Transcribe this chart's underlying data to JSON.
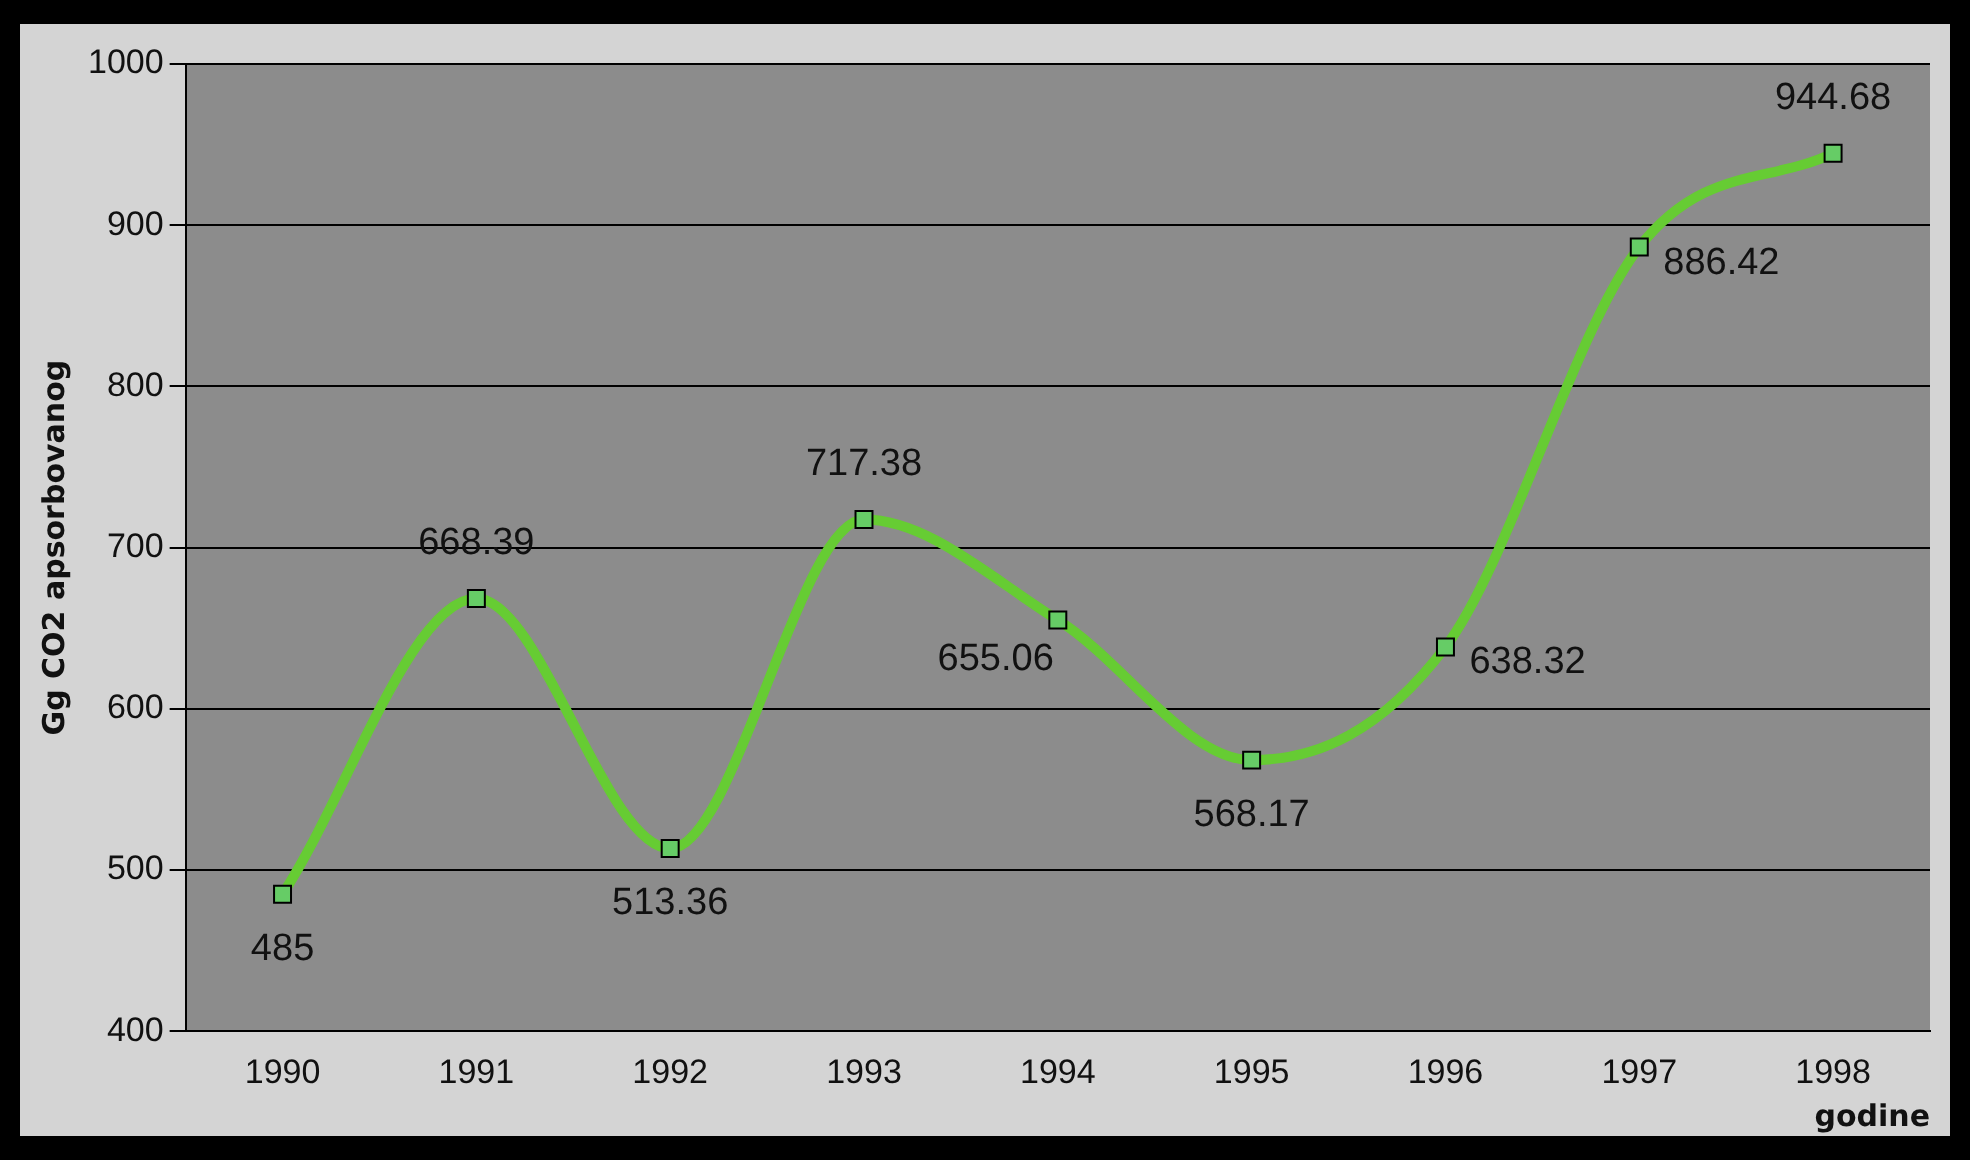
{
  "chart_data": {
    "type": "line",
    "ylabel": "Gg CO2 apsorbovanog",
    "xlabel": "godine",
    "categories": [
      "1990",
      "1991",
      "1992",
      "1993",
      "1994",
      "1995",
      "1996",
      "1997",
      "1998"
    ],
    "series": [
      {
        "color": "#66cc33",
        "values": [
          485,
          668.39,
          513.36,
          717.38,
          655.06,
          568.17,
          638.32,
          886.42,
          944.68
        ]
      }
    ],
    "ylim": [
      400,
      1000
    ],
    "yticks": [
      400,
      500,
      600,
      700,
      800,
      900,
      1000
    ],
    "grid": "y",
    "legend": false,
    "marker": "square",
    "line_style": "solid",
    "data_labels": true
  }
}
